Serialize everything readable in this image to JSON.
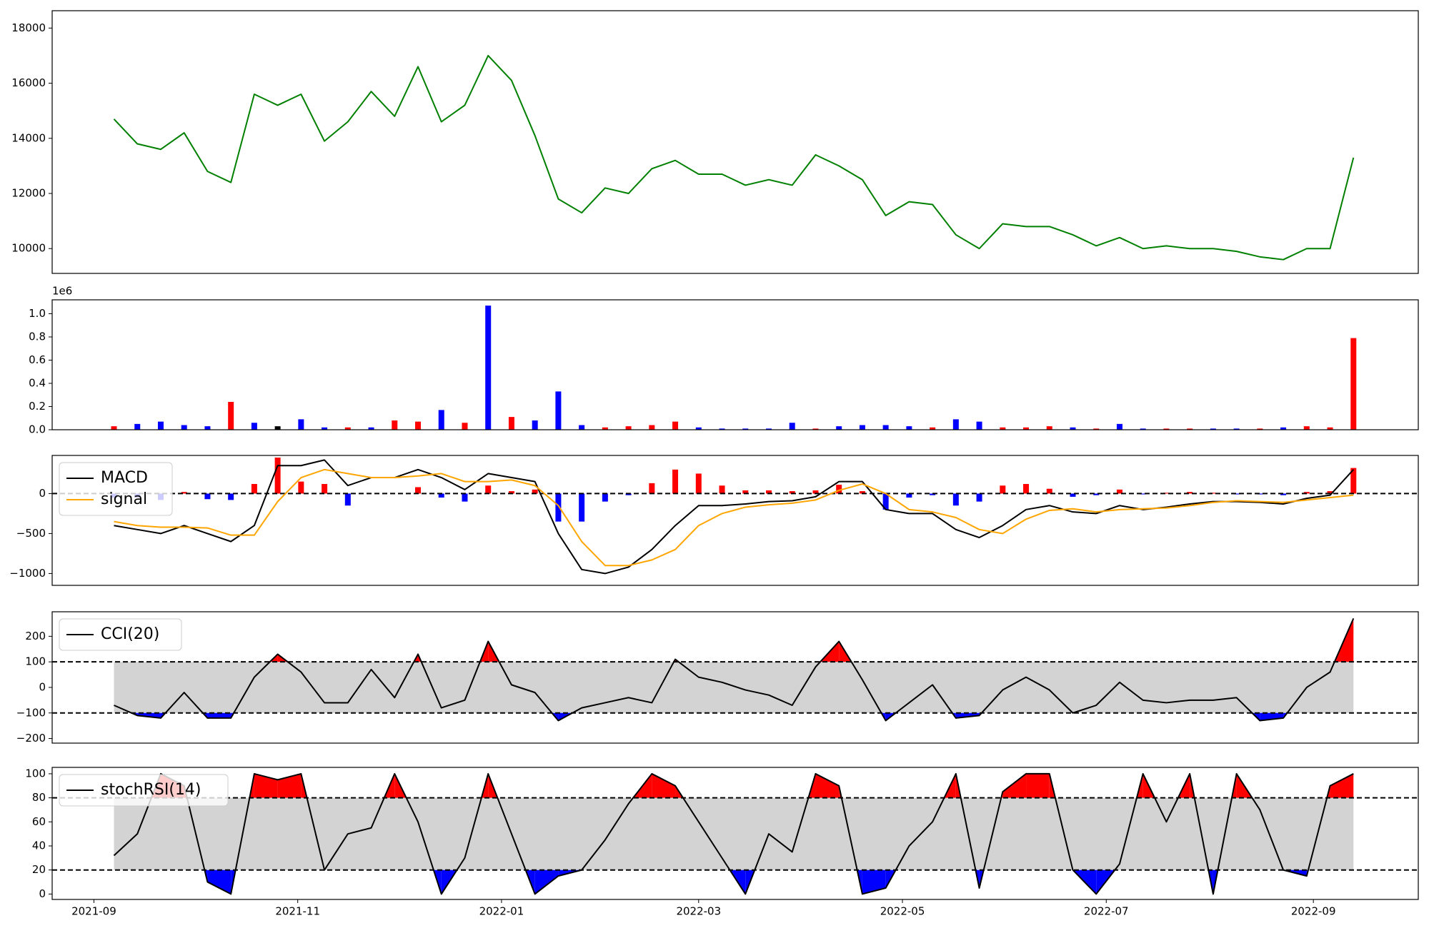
{
  "chart_data": [
    {
      "type": "line",
      "color": "#008000",
      "x": [
        18877,
        18884,
        18891,
        18898,
        18905,
        18912,
        18919,
        18926,
        18933,
        18940,
        18947,
        18954,
        18961,
        18968,
        18975,
        18982,
        18989,
        18996,
        19003,
        19010,
        19017,
        19024,
        19031,
        19038,
        19045,
        19052,
        19059,
        19066,
        19073,
        19080,
        19087,
        19094,
        19101,
        19108,
        19115,
        19122,
        19129,
        19136,
        19143,
        19150,
        19157,
        19164,
        19171,
        19178,
        19185,
        19192,
        19199,
        19206,
        19213,
        19220,
        19227,
        19234,
        19241,
        19248
      ],
      "values": [
        14700,
        13800,
        13600,
        14200,
        12800,
        12400,
        15600,
        15200,
        15600,
        13900,
        14600,
        15700,
        14800,
        16600,
        14600,
        15200,
        17000,
        16100,
        14100,
        11800,
        11300,
        12200,
        12000,
        12900,
        13200,
        12700,
        12700,
        12300,
        12500,
        12300,
        13400,
        13000,
        12500,
        11200,
        11700,
        11600,
        10500,
        10000,
        10900,
        10800,
        10800,
        10500,
        10100,
        10400,
        10000,
        10100,
        10000,
        10000,
        9900,
        9700,
        9600,
        10000,
        10000,
        13300
      ],
      "xlim": [
        18858.5,
        19267.4
      ],
      "ylim": [
        9100,
        18630
      ],
      "yticks": [
        10000,
        12000,
        14000,
        16000,
        18000
      ]
    },
    {
      "type": "bar",
      "offset_label": "1e6",
      "x": [
        18877,
        18884,
        18891,
        18898,
        18905,
        18912,
        18919,
        18926,
        18933,
        18940,
        18947,
        18954,
        18961,
        18968,
        18975,
        18982,
        18989,
        18996,
        19003,
        19010,
        19017,
        19024,
        19031,
        19038,
        19045,
        19052,
        19059,
        19066,
        19073,
        19080,
        19087,
        19094,
        19101,
        19108,
        19115,
        19122,
        19129,
        19136,
        19143,
        19150,
        19157,
        19164,
        19171,
        19178,
        19185,
        19192,
        19199,
        19206,
        19213,
        19220,
        19227,
        19234,
        19241,
        19248
      ],
      "values": [
        30000,
        50000,
        70000,
        40000,
        30000,
        240000,
        60000,
        30000,
        90000,
        20000,
        20000,
        20000,
        80000,
        70000,
        170000,
        60000,
        1070000,
        110000,
        80000,
        330000,
        40000,
        20000,
        30000,
        40000,
        70000,
        20000,
        10000,
        10000,
        10000,
        60000,
        10000,
        30000,
        40000,
        40000,
        30000,
        20000,
        90000,
        70000,
        20000,
        20000,
        30000,
        20000,
        10000,
        50000,
        10000,
        10000,
        10000,
        10000,
        10000,
        10000,
        20000,
        30000,
        20000,
        790000
      ],
      "colors": [
        "red",
        "blue",
        "blue",
        "blue",
        "blue",
        "red",
        "blue",
        "black",
        "blue",
        "blue",
        "red",
        "blue",
        "red",
        "red",
        "blue",
        "red",
        "blue",
        "red",
        "blue",
        "blue",
        "blue",
        "red",
        "red",
        "red",
        "red",
        "blue",
        "blue",
        "blue",
        "blue",
        "blue",
        "red",
        "blue",
        "blue",
        "blue",
        "blue",
        "red",
        "blue",
        "blue",
        "red",
        "red",
        "red",
        "blue",
        "red",
        "blue",
        "blue",
        "red",
        "red",
        "blue",
        "blue",
        "red",
        "blue",
        "red",
        "red",
        "red"
      ],
      "xlim": [
        18858.5,
        19267.4
      ],
      "ylim": [
        0,
        1120000
      ],
      "yticks": [
        {
          "value": 0,
          "label": "0.0"
        },
        {
          "value": 200000,
          "label": "0.2"
        },
        {
          "value": 400000,
          "label": "0.4"
        },
        {
          "value": 600000,
          "label": "0.6"
        },
        {
          "value": 800000,
          "label": "0.8"
        },
        {
          "value": 1000000,
          "label": "1.0"
        }
      ]
    },
    {
      "type": "line",
      "legend": "upper left",
      "levels": [
        0
      ],
      "x": [
        18877,
        18884,
        18891,
        18898,
        18905,
        18912,
        18919,
        18926,
        18933,
        18940,
        18947,
        18954,
        18961,
        18968,
        18975,
        18982,
        18989,
        18996,
        19003,
        19010,
        19017,
        19024,
        19031,
        19038,
        19045,
        19052,
        19059,
        19066,
        19073,
        19080,
        19087,
        19094,
        19101,
        19108,
        19115,
        19122,
        19129,
        19136,
        19143,
        19150,
        19157,
        19164,
        19171,
        19178,
        19185,
        19192,
        19199,
        19206,
        19213,
        19220,
        19227,
        19234,
        19241,
        19248
      ],
      "series": [
        {
          "name": "MACD",
          "color": "#000000",
          "values": [
            -400,
            -450,
            -500,
            -400,
            -500,
            -600,
            -400,
            350,
            350,
            420,
            100,
            200,
            200,
            300,
            200,
            50,
            250,
            200,
            150,
            -500,
            -950,
            -1000,
            -920,
            -700,
            -400,
            -150,
            -150,
            -130,
            -100,
            -90,
            -40,
            150,
            150,
            -200,
            -250,
            -250,
            -450,
            -550,
            -400,
            -200,
            -150,
            -230,
            -250,
            -150,
            -200,
            -170,
            -130,
            -100,
            -100,
            -110,
            -130,
            -60,
            -20,
            300
          ]
        },
        {
          "name": "signal",
          "color": "#ffa500",
          "values": [
            -350,
            -400,
            -420,
            -420,
            -430,
            -520,
            -520,
            -100,
            200,
            300,
            250,
            200,
            200,
            220,
            250,
            150,
            150,
            170,
            100,
            -150,
            -600,
            -900,
            -900,
            -830,
            -700,
            -400,
            -250,
            -170,
            -140,
            -120,
            -80,
            40,
            120,
            0,
            -200,
            -230,
            -300,
            -450,
            -500,
            -320,
            -210,
            -190,
            -230,
            -200,
            -190,
            -180,
            -150,
            -110,
            -90,
            -100,
            -110,
            -80,
            -50,
            -20
          ]
        }
      ],
      "histogram_values": [
        -50,
        -50,
        -80,
        20,
        -70,
        -80,
        120,
        450,
        150,
        120,
        -150,
        0,
        0,
        80,
        -50,
        -100,
        100,
        30,
        50,
        -350,
        -350,
        -100,
        -20,
        130,
        300,
        250,
        100,
        40,
        40,
        30,
        40,
        110,
        30,
        -200,
        -50,
        -20,
        -150,
        -100,
        100,
        120,
        60,
        -40,
        -20,
        50,
        -10,
        10,
        20,
        10,
        -10,
        -10,
        -20,
        20,
        30,
        320
      ],
      "positive_color": "red",
      "negative_color": "blue",
      "xlim": [
        18858.5,
        19267.4
      ],
      "ylim": [
        -1148,
        477
      ],
      "yticks": [
        {
          "value": -1000,
          "label": "−1000"
        },
        {
          "value": -500,
          "label": "−500"
        },
        0
      ]
    },
    {
      "type": "line",
      "legend": "upper left",
      "levels": [
        -100,
        100
      ],
      "band_color": "#d3d3d3",
      "above_color": "red",
      "below_color": "blue",
      "x": [
        18877,
        18884,
        18891,
        18898,
        18905,
        18912,
        18919,
        18926,
        18933,
        18940,
        18947,
        18954,
        18961,
        18968,
        18975,
        18982,
        18989,
        18996,
        19003,
        19010,
        19017,
        19024,
        19031,
        19038,
        19045,
        19052,
        19059,
        19066,
        19073,
        19080,
        19087,
        19094,
        19101,
        19108,
        19115,
        19122,
        19129,
        19136,
        19143,
        19150,
        19157,
        19164,
        19171,
        19178,
        19185,
        19192,
        19199,
        19206,
        19213,
        19220,
        19227,
        19234,
        19241,
        19248
      ],
      "series": [
        {
          "name": "CCI(20)",
          "color": "#000000",
          "values": [
            -70,
            -110,
            -120,
            -20,
            -120,
            -120,
            40,
            130,
            60,
            -60,
            -60,
            70,
            -40,
            130,
            -80,
            -50,
            180,
            10,
            -20,
            -130,
            -80,
            -60,
            -40,
            -60,
            110,
            40,
            20,
            -10,
            -30,
            -70,
            80,
            180,
            30,
            -130,
            -60,
            10,
            -120,
            -110,
            -10,
            40,
            -10,
            -100,
            -70,
            20,
            -50,
            -60,
            -50,
            -50,
            -40,
            -130,
            -120,
            0,
            60,
            270
          ]
        }
      ],
      "xlim": [
        18858.5,
        19267.4
      ],
      "ylim": [
        -218,
        296
      ],
      "yticks": [
        {
          "value": -200,
          "label": "−200"
        },
        {
          "value": -100,
          "label": "−100"
        },
        0,
        100,
        200
      ]
    },
    {
      "type": "line",
      "legend": "upper left",
      "levels": [
        20,
        80
      ],
      "band_color": "#d3d3d3",
      "above_color": "red",
      "below_color": "blue",
      "x": [
        18877,
        18884,
        18891,
        18898,
        18905,
        18912,
        18919,
        18926,
        18933,
        18940,
        18947,
        18954,
        18961,
        18968,
        18975,
        18982,
        18989,
        18996,
        19003,
        19010,
        19017,
        19024,
        19031,
        19038,
        19045,
        19052,
        19059,
        19066,
        19073,
        19080,
        19087,
        19094,
        19101,
        19108,
        19115,
        19122,
        19129,
        19136,
        19143,
        19150,
        19157,
        19164,
        19171,
        19178,
        19185,
        19192,
        19199,
        19206,
        19213,
        19220,
        19227,
        19234,
        19241,
        19248
      ],
      "series": [
        {
          "name": "stochRSI(14)",
          "color": "#000000",
          "values": [
            32,
            50,
            100,
            90,
            10,
            0,
            100,
            95,
            100,
            20,
            50,
            55,
            100,
            60,
            0,
            30,
            100,
            50,
            0,
            15,
            20,
            45,
            75,
            100,
            90,
            60,
            30,
            0,
            50,
            35,
            100,
            90,
            0,
            5,
            40,
            60,
            100,
            5,
            85,
            100,
            100,
            20,
            0,
            25,
            100,
            60,
            100,
            0,
            100,
            70,
            20,
            15,
            90,
            100
          ]
        }
      ],
      "xlim": [
        18858.5,
        19267.4
      ],
      "ylim": [
        -4.5,
        105.3
      ],
      "yticks": [
        0,
        20,
        40,
        60,
        80,
        100
      ],
      "xticks": [
        {
          "value": 18871,
          "label": "2021-09"
        },
        {
          "value": 18932,
          "label": "2021-11"
        },
        {
          "value": 18993,
          "label": "2022-01"
        },
        {
          "value": 19052,
          "label": "2022-03"
        },
        {
          "value": 19113,
          "label": "2022-05"
        },
        {
          "value": 19174,
          "label": "2022-07"
        },
        {
          "value": 19236,
          "label": "2022-09"
        }
      ]
    }
  ]
}
